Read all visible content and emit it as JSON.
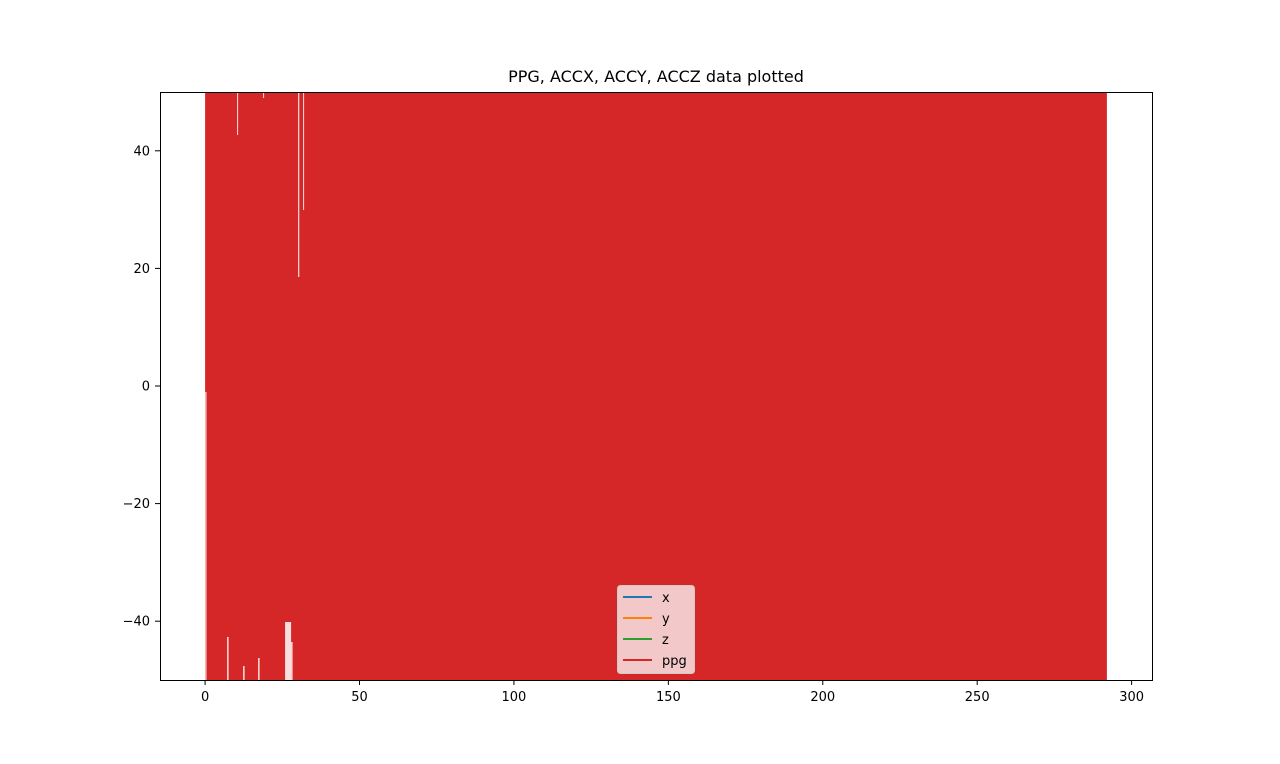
{
  "chart_data": {
    "type": "line",
    "title": "PPG, ACCX, ACCY, ACCZ data plotted",
    "xlabel": "",
    "ylabel": "",
    "xlim": [
      -14.6,
      306.6
    ],
    "ylim": [
      -50,
      50
    ],
    "x_ticks": [
      0,
      50,
      100,
      150,
      200,
      250,
      300
    ],
    "y_ticks": [
      -40,
      -20,
      0,
      20,
      40
    ],
    "grid": false,
    "legend_position": "lower center",
    "x_range_of_data": [
      0,
      292
    ],
    "series": [
      {
        "name": "x",
        "color": "#1f77b4",
        "values": []
      },
      {
        "name": "y",
        "color": "#ff7f0e",
        "values": []
      },
      {
        "name": "z",
        "color": "#2ca02c",
        "values": []
      },
      {
        "name": "ppg",
        "color": "#d62728",
        "fill_range": [
          0,
          292
        ],
        "note_values_exceed_ylim": true
      }
    ]
  }
}
